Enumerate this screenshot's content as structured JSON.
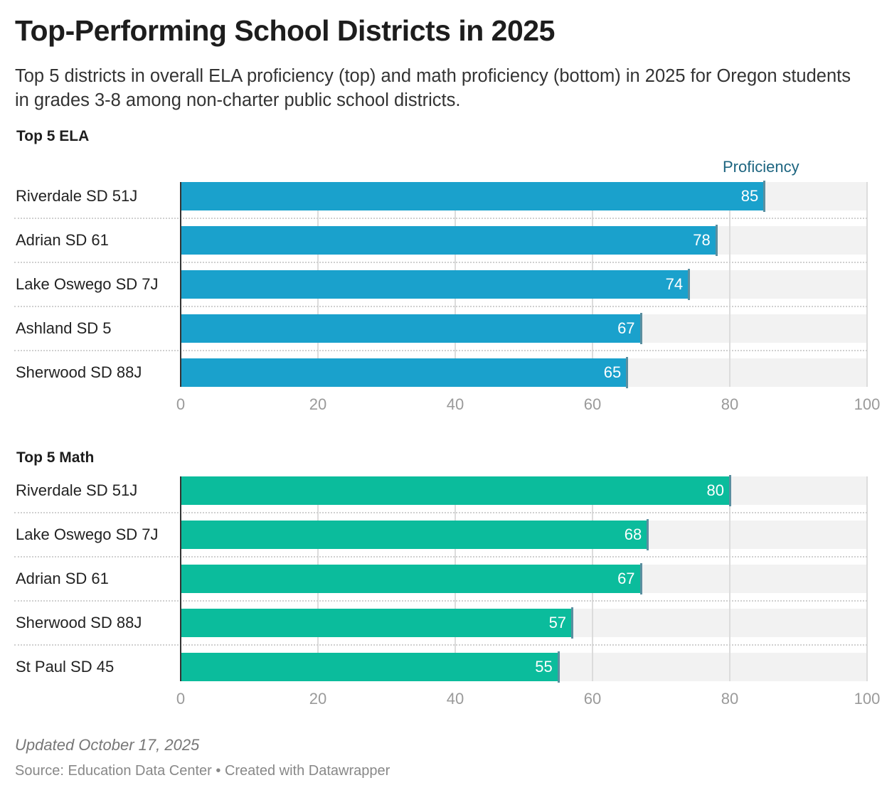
{
  "header": {
    "title": "Top-Performing School Districts in 2025",
    "subtitle": "Top 5 districts in overall ELA proficiency (top) and math proficiency (bottom) in 2025 for Oregon students in grades 3-8 among non-charter public school districts."
  },
  "legend": "Proficiency",
  "colors": {
    "ela": "#1aa1cc",
    "math": "#0bbc9c",
    "marker": "#5b8fa0",
    "track": "#f2f2f2"
  },
  "chart_data": [
    {
      "type": "bar",
      "title": "Top 5 ELA",
      "xlabel": "Proficiency",
      "xlim": [
        0,
        100
      ],
      "ticks": [
        "0",
        "20",
        "40",
        "60",
        "80",
        "100"
      ],
      "categories": [
        "Riverdale SD 51J",
        "Adrian SD 61",
        "Lake Oswego SD 7J",
        "Ashland SD 5",
        "Sherwood SD 88J"
      ],
      "values": [
        85,
        78,
        74,
        67,
        65
      ]
    },
    {
      "type": "bar",
      "title": "Top 5 Math",
      "xlabel": "Proficiency",
      "xlim": [
        0,
        100
      ],
      "ticks": [
        "0",
        "20",
        "40",
        "60",
        "80",
        "100"
      ],
      "categories": [
        "Riverdale SD 51J",
        "Lake Oswego SD 7J",
        "Adrian SD 61",
        "Sherwood SD 88J",
        "St Paul SD 45"
      ],
      "values": [
        80,
        68,
        67,
        57,
        55
      ]
    }
  ],
  "footer": {
    "updated": "Updated October 17, 2025",
    "source": "Source: Education Data Center • Created with Datawrapper"
  }
}
